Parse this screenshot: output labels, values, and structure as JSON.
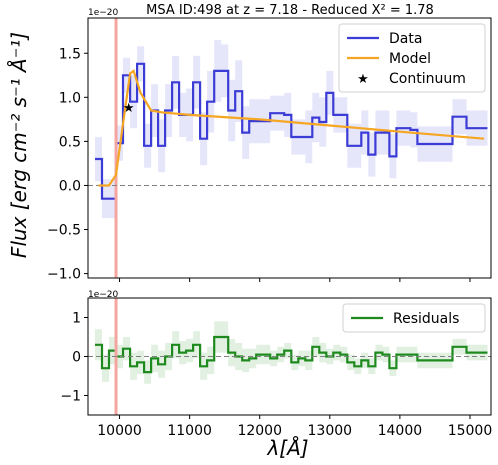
{
  "chart_data": [
    {
      "type": "line",
      "title": "MSA ID:498 at z = 7.18 - Reduced X² = 1.78",
      "ylabel": "Flux [erg cm⁻² s⁻¹ Å⁻¹]",
      "scale_note": "1e−20",
      "xlim": [
        9550,
        15300
      ],
      "ylim": [
        -1.05,
        1.9
      ],
      "yticks": [
        -1.0,
        -0.5,
        0.0,
        0.5,
        1.0,
        1.5
      ],
      "ytick_labels": [
        "−1.0",
        "−0.5",
        "0.0",
        "0.5",
        "1.0",
        "1.5"
      ],
      "vline_x": 9950,
      "vline_color": "#f4a5a0",
      "zero_line": true,
      "legend_position": "top-right",
      "series": [
        {
          "name": "Data",
          "color": "#3b3bd6",
          "style": "step",
          "x": [
            9700,
            9800,
            9900,
            10000,
            10100,
            10200,
            10300,
            10400,
            10500,
            10600,
            10700,
            10800,
            10900,
            11000,
            11100,
            11200,
            11300,
            11400,
            11500,
            11600,
            11700,
            11800,
            11900,
            12000,
            12100,
            12200,
            12300,
            12400,
            12500,
            12600,
            12700,
            12800,
            12900,
            13000,
            13100,
            13200,
            13300,
            13400,
            13500,
            13600,
            13700,
            13800,
            13900,
            14000,
            14100,
            14200,
            14300,
            14400,
            14500,
            14600,
            14700,
            14800,
            14900,
            15000,
            15100,
            15200
          ],
          "y": [
            0.3,
            -0.15,
            -0.15,
            0.48,
            1.25,
            0.95,
            1.38,
            0.45,
            0.85,
            0.45,
            0.85,
            1.17,
            0.8,
            0.8,
            1.17,
            0.53,
            0.95,
            1.3,
            1.3,
            0.85,
            1.07,
            0.6,
            0.73,
            0.73,
            0.73,
            0.82,
            0.82,
            0.8,
            0.55,
            0.55,
            0.55,
            0.77,
            0.72,
            1.05,
            0.8,
            0.8,
            0.45,
            0.45,
            0.6,
            0.35,
            0.6,
            0.6,
            0.33,
            0.65,
            0.65,
            0.63,
            0.47,
            0.47,
            0.47,
            0.47,
            0.47,
            0.78,
            0.78,
            0.65,
            0.65,
            0.65
          ],
          "err": [
            0.25,
            0.22,
            0.22,
            0.2,
            0.2,
            0.3,
            0.2,
            0.25,
            0.3,
            0.3,
            0.3,
            0.3,
            0.25,
            0.3,
            0.3,
            0.3,
            0.35,
            0.35,
            0.3,
            0.35,
            0.35,
            0.3,
            0.25,
            0.25,
            0.25,
            0.2,
            0.2,
            0.25,
            0.2,
            0.2,
            0.3,
            0.28,
            0.28,
            0.25,
            0.2,
            0.2,
            0.25,
            0.25,
            0.25,
            0.25,
            0.25,
            0.25,
            0.25,
            0.2,
            0.2,
            0.2,
            0.2,
            0.2,
            0.2,
            0.2,
            0.2,
            0.2,
            0.2,
            0.2,
            0.2,
            0.2
          ]
        },
        {
          "name": "Model",
          "color": "#f5a623",
          "style": "line",
          "x": [
            9700,
            9850,
            9950,
            10050,
            10150,
            10200,
            10300,
            10450,
            10600,
            11000,
            12000,
            13000,
            14000,
            15200
          ],
          "y": [
            0.0,
            0.0,
            0.12,
            0.7,
            1.27,
            1.3,
            1.05,
            0.85,
            0.83,
            0.8,
            0.75,
            0.68,
            0.61,
            0.53
          ]
        },
        {
          "name": "Continuum",
          "color": "#000000",
          "style": "marker",
          "x": [
            10130
          ],
          "y": [
            0.88
          ]
        }
      ]
    },
    {
      "type": "line",
      "xlabel": "λ[Å]",
      "scale_note": "1e−20",
      "xlim": [
        9550,
        15300
      ],
      "ylim": [
        -1.5,
        1.5
      ],
      "yticks": [
        -1,
        0,
        1
      ],
      "ytick_labels": [
        "−1",
        "0",
        "1"
      ],
      "xticks": [
        10000,
        11000,
        12000,
        13000,
        14000,
        15000
      ],
      "xtick_labels": [
        "10000",
        "11000",
        "12000",
        "13000",
        "14000",
        "15000"
      ],
      "vline_x": 9950,
      "vline_color": "#f4a5a0",
      "zero_line": true,
      "legend_position": "top-right",
      "series": [
        {
          "name": "Residuals",
          "color": "#1e8a1e",
          "style": "step",
          "x": [
            9700,
            9800,
            9900,
            10000,
            10100,
            10200,
            10300,
            10400,
            10500,
            10600,
            10700,
            10800,
            10900,
            11000,
            11100,
            11200,
            11300,
            11400,
            11500,
            11600,
            11700,
            11800,
            11900,
            12000,
            12100,
            12200,
            12300,
            12400,
            12500,
            12600,
            12700,
            12800,
            12900,
            13000,
            13100,
            13200,
            13300,
            13400,
            13500,
            13600,
            13700,
            13800,
            13900,
            14000,
            14100,
            14200,
            14300,
            14400,
            14500,
            14600,
            14700,
            14800,
            14900,
            15000,
            15100,
            15200
          ],
          "y": [
            0.3,
            -0.3,
            0.15,
            0.0,
            0.2,
            -0.25,
            -0.15,
            -0.4,
            -0.05,
            -0.2,
            0.0,
            0.3,
            0.1,
            0.15,
            0.3,
            -0.25,
            -0.1,
            0.5,
            0.5,
            0.1,
            0.0,
            -0.1,
            -0.05,
            0.05,
            0.05,
            -0.05,
            0.05,
            0.15,
            -0.15,
            -0.05,
            -0.1,
            0.25,
            0.1,
            0.0,
            0.1,
            0.05,
            -0.15,
            -0.25,
            -0.1,
            -0.25,
            0.1,
            0.05,
            -0.3,
            0.05,
            0.05,
            0.05,
            -0.1,
            -0.1,
            -0.1,
            -0.1,
            -0.1,
            0.25,
            0.25,
            0.1,
            0.1,
            0.1
          ],
          "err": [
            0.4,
            0.35,
            0.35,
            0.3,
            0.3,
            0.35,
            0.3,
            0.3,
            0.35,
            0.35,
            0.35,
            0.35,
            0.3,
            0.3,
            0.35,
            0.35,
            0.35,
            0.4,
            0.4,
            0.35,
            0.35,
            0.3,
            0.25,
            0.25,
            0.25,
            0.2,
            0.2,
            0.2,
            0.2,
            0.2,
            0.25,
            0.25,
            0.25,
            0.2,
            0.2,
            0.2,
            0.2,
            0.2,
            0.2,
            0.2,
            0.2,
            0.2,
            0.2,
            0.2,
            0.2,
            0.2,
            0.2,
            0.2,
            0.2,
            0.2,
            0.2,
            0.2,
            0.2,
            0.2,
            0.2,
            0.2
          ]
        }
      ]
    }
  ]
}
